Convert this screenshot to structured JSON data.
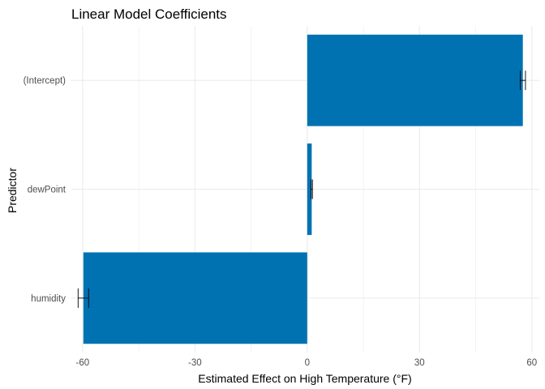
{
  "chart_data": {
    "type": "bar",
    "orientation": "horizontal",
    "title": "Linear Model Coefficients",
    "xlabel": "Estimated Effect on High Temperature (°F)",
    "ylabel": "Predictor",
    "categories": [
      "(Intercept)",
      "dewPoint",
      "humidity"
    ],
    "values": [
      57.6,
      1.2,
      -59.8
    ],
    "error_low": [
      56.9,
      1.0,
      -61.2
    ],
    "error_high": [
      58.3,
      1.4,
      -58.4
    ],
    "xlim": [
      -63,
      62
    ],
    "xticks": [
      -60,
      -30,
      0,
      30,
      60
    ],
    "grid": true,
    "bar_color": "#0072B2",
    "errorbar_color": "#000000",
    "grid_color": "#EBEBEB"
  }
}
